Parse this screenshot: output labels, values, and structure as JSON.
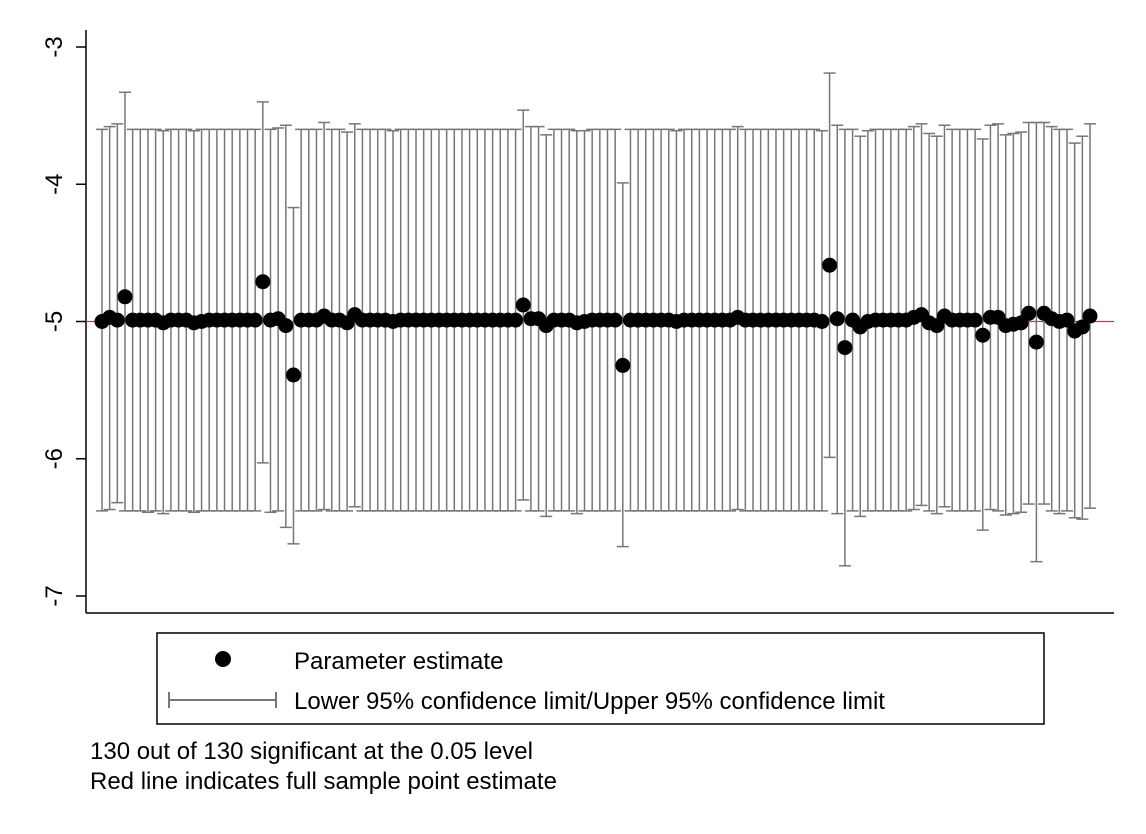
{
  "chart_data": {
    "type": "scatter",
    "title": "",
    "xlabel": "",
    "ylabel": "",
    "ylim": [
      -7.1,
      -2.8
    ],
    "yticks": [
      -3,
      -4,
      -5,
      -6,
      -7
    ],
    "reference_line": {
      "y": -5.0,
      "color": "#e03030"
    },
    "marker_color": "#000000",
    "ci_color": "#777777",
    "grid": false,
    "legend_position": "bottom",
    "legend": {
      "estimate_label": "Parameter estimate",
      "ci_label": "Lower 95% confidence limit/Upper 95% confidence limit"
    },
    "series": [
      {
        "name": "Parameter estimate",
        "values": [
          -5.0,
          -4.97,
          -4.99,
          -4.82,
          -4.99,
          -4.99,
          -4.99,
          -4.99,
          -5.01,
          -4.99,
          -4.99,
          -4.99,
          -5.01,
          -5.0,
          -4.99,
          -4.99,
          -4.99,
          -4.99,
          -4.99,
          -4.99,
          -4.99,
          -4.71,
          -4.99,
          -4.98,
          -5.03,
          -5.39,
          -4.99,
          -4.99,
          -4.99,
          -4.96,
          -4.99,
          -4.99,
          -5.01,
          -4.95,
          -4.99,
          -4.99,
          -4.99,
          -4.99,
          -5.0,
          -4.99,
          -4.99,
          -4.99,
          -4.99,
          -4.99,
          -4.99,
          -4.99,
          -4.99,
          -4.99,
          -4.99,
          -4.99,
          -4.99,
          -4.99,
          -4.99,
          -4.99,
          -4.99,
          -4.88,
          -4.98,
          -4.98,
          -5.03,
          -4.99,
          -4.99,
          -4.99,
          -5.01,
          -5.0,
          -4.99,
          -4.99,
          -4.99,
          -4.99,
          -5.32,
          -4.99,
          -4.99,
          -4.99,
          -4.99,
          -4.99,
          -4.99,
          -5.0,
          -4.99,
          -4.99,
          -4.99,
          -4.99,
          -4.99,
          -4.99,
          -4.99,
          -4.97,
          -4.99,
          -4.99,
          -4.99,
          -4.99,
          -4.99,
          -4.99,
          -4.99,
          -4.99,
          -4.99,
          -4.99,
          -5.0,
          -4.59,
          -4.98,
          -5.19,
          -4.99,
          -5.04,
          -5.0,
          -4.99,
          -4.99,
          -4.99,
          -4.99,
          -4.99,
          -4.97,
          -4.95,
          -5.01,
          -5.03,
          -4.96,
          -4.99,
          -4.99,
          -4.99,
          -4.99,
          -5.1,
          -4.97,
          -4.97,
          -5.03,
          -5.02,
          -5.01,
          -4.94,
          -5.15,
          -4.94,
          -4.98,
          -5.0,
          -4.99,
          -5.07,
          -5.04,
          -4.96
        ]
      },
      {
        "name": "Lower 95% confidence limit",
        "values": [
          -6.38,
          -6.37,
          -6.32,
          -6.38,
          -6.38,
          -6.38,
          -6.39,
          -6.38,
          -6.4,
          -6.38,
          -6.38,
          -6.38,
          -6.39,
          -6.38,
          -6.38,
          -6.38,
          -6.38,
          -6.38,
          -6.38,
          -6.38,
          -6.38,
          -6.03,
          -6.39,
          -6.38,
          -6.5,
          -6.62,
          -6.38,
          -6.38,
          -6.38,
          -6.37,
          -6.38,
          -6.38,
          -6.38,
          -6.35,
          -6.38,
          -6.38,
          -6.38,
          -6.38,
          -6.38,
          -6.38,
          -6.38,
          -6.38,
          -6.38,
          -6.38,
          -6.38,
          -6.38,
          -6.38,
          -6.38,
          -6.38,
          -6.38,
          -6.38,
          -6.38,
          -6.38,
          -6.38,
          -6.38,
          -6.3,
          -6.38,
          -6.38,
          -6.42,
          -6.38,
          -6.38,
          -6.38,
          -6.4,
          -6.38,
          -6.38,
          -6.38,
          -6.38,
          -6.38,
          -6.64,
          -6.38,
          -6.38,
          -6.38,
          -6.38,
          -6.38,
          -6.38,
          -6.38,
          -6.38,
          -6.38,
          -6.38,
          -6.38,
          -6.38,
          -6.38,
          -6.38,
          -6.37,
          -6.38,
          -6.38,
          -6.38,
          -6.38,
          -6.38,
          -6.38,
          -6.38,
          -6.38,
          -6.38,
          -6.38,
          -6.38,
          -5.99,
          -6.4,
          -6.78,
          -6.38,
          -6.42,
          -6.38,
          -6.38,
          -6.38,
          -6.38,
          -6.38,
          -6.38,
          -6.37,
          -6.34,
          -6.38,
          -6.4,
          -6.35,
          -6.38,
          -6.38,
          -6.38,
          -6.38,
          -6.52,
          -6.37,
          -6.38,
          -6.41,
          -6.4,
          -6.39,
          -6.33,
          -6.75,
          -6.33,
          -6.38,
          -6.4,
          -6.38,
          -6.43,
          -6.44,
          -6.36
        ]
      },
      {
        "name": "Upper 95% confidence limit",
        "values": [
          -3.6,
          -3.58,
          -3.56,
          -3.33,
          -3.6,
          -3.6,
          -3.6,
          -3.6,
          -3.61,
          -3.6,
          -3.6,
          -3.6,
          -3.61,
          -3.6,
          -3.6,
          -3.6,
          -3.6,
          -3.6,
          -3.6,
          -3.6,
          -3.6,
          -3.4,
          -3.6,
          -3.59,
          -3.57,
          -4.17,
          -3.6,
          -3.6,
          -3.6,
          -3.55,
          -3.6,
          -3.6,
          -3.62,
          -3.56,
          -3.6,
          -3.6,
          -3.6,
          -3.6,
          -3.61,
          -3.6,
          -3.6,
          -3.6,
          -3.6,
          -3.6,
          -3.6,
          -3.6,
          -3.6,
          -3.6,
          -3.6,
          -3.6,
          -3.6,
          -3.6,
          -3.6,
          -3.6,
          -3.6,
          -3.46,
          -3.58,
          -3.58,
          -3.64,
          -3.6,
          -3.6,
          -3.6,
          -3.61,
          -3.61,
          -3.6,
          -3.6,
          -3.6,
          -3.6,
          -3.99,
          -3.6,
          -3.6,
          -3.6,
          -3.6,
          -3.6,
          -3.6,
          -3.61,
          -3.6,
          -3.6,
          -3.6,
          -3.6,
          -3.6,
          -3.6,
          -3.6,
          -3.58,
          -3.6,
          -3.6,
          -3.6,
          -3.6,
          -3.6,
          -3.6,
          -3.6,
          -3.6,
          -3.6,
          -3.6,
          -3.61,
          -3.19,
          -3.57,
          -3.6,
          -3.6,
          -3.65,
          -3.61,
          -3.6,
          -3.6,
          -3.6,
          -3.6,
          -3.6,
          -3.58,
          -3.56,
          -3.63,
          -3.65,
          -3.57,
          -3.6,
          -3.6,
          -3.6,
          -3.6,
          -3.67,
          -3.57,
          -3.56,
          -3.64,
          -3.63,
          -3.62,
          -3.55,
          -3.55,
          -3.55,
          -3.58,
          -3.6,
          -3.6,
          -3.7,
          -3.65,
          -3.56
        ]
      }
    ]
  },
  "notes": {
    "line1": "130 out of 130 significant at the 0.05 level",
    "line2": "Red line indicates full sample point estimate"
  }
}
